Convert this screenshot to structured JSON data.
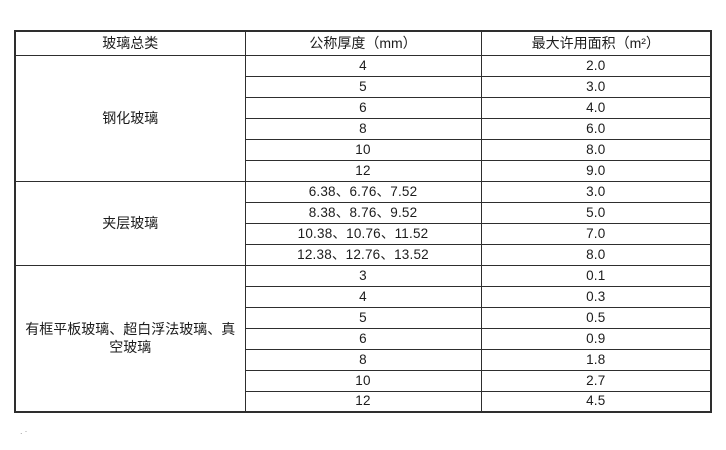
{
  "page": {
    "background": "#ffffff",
    "border_color": "#2e2e2e",
    "stray_mark": ".·"
  },
  "table": {
    "columns": [
      "玻璃总类",
      "公称厚度（mm）",
      "最大许用面积（m²）"
    ],
    "groups": [
      {
        "category": "钢化玻璃",
        "rows": [
          [
            "4",
            "2.0"
          ],
          [
            "5",
            "3.0"
          ],
          [
            "6",
            "4.0"
          ],
          [
            "8",
            "6.0"
          ],
          [
            "10",
            "8.0"
          ],
          [
            "12",
            "9.0"
          ]
        ]
      },
      {
        "category": "夹层玻璃",
        "rows": [
          [
            "6.38、6.76、7.52",
            "3.0"
          ],
          [
            "8.38、8.76、9.52",
            "5.0"
          ],
          [
            "10.38、10.76、11.52",
            "7.0"
          ],
          [
            "12.38、12.76、13.52",
            "8.0"
          ]
        ]
      },
      {
        "category": "有框平板玻璃、超白浮法玻璃、真空玻璃",
        "rows": [
          [
            "3",
            "0.1"
          ],
          [
            "4",
            "0.3"
          ],
          [
            "5",
            "0.5"
          ],
          [
            "6",
            "0.9"
          ],
          [
            "8",
            "1.8"
          ],
          [
            "10",
            "2.7"
          ],
          [
            "12",
            "4.5"
          ]
        ]
      }
    ]
  }
}
